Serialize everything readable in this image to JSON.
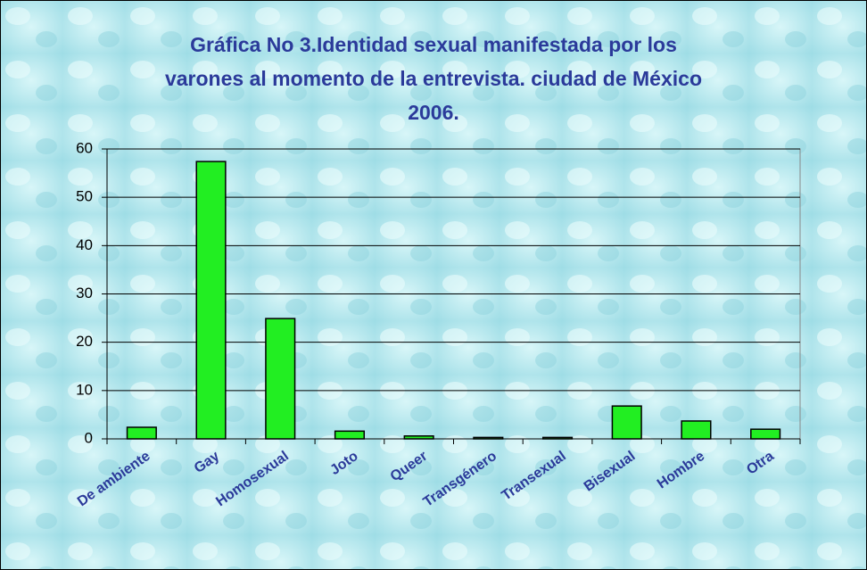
{
  "chart_data": {
    "type": "bar",
    "title": [
      "Gráfica No 3.Identidad sexual manifestada por los",
      "varones al momento de la entrevista. ciudad de México",
      "2006."
    ],
    "categories": [
      "De ambiente",
      "Gay",
      "Homosexual",
      "Joto",
      "Queer",
      "Transgénero",
      "Transexual",
      "Bisexual",
      "Hombre",
      "Otra"
    ],
    "values": [
      2.4,
      57.4,
      24.9,
      1.6,
      0.6,
      0.3,
      0.3,
      6.8,
      3.7,
      2.0
    ],
    "color": "#22ee22",
    "ylim": [
      0,
      60
    ],
    "yticks": [
      0,
      10,
      20,
      30,
      40,
      50,
      60
    ],
    "grid": true
  }
}
